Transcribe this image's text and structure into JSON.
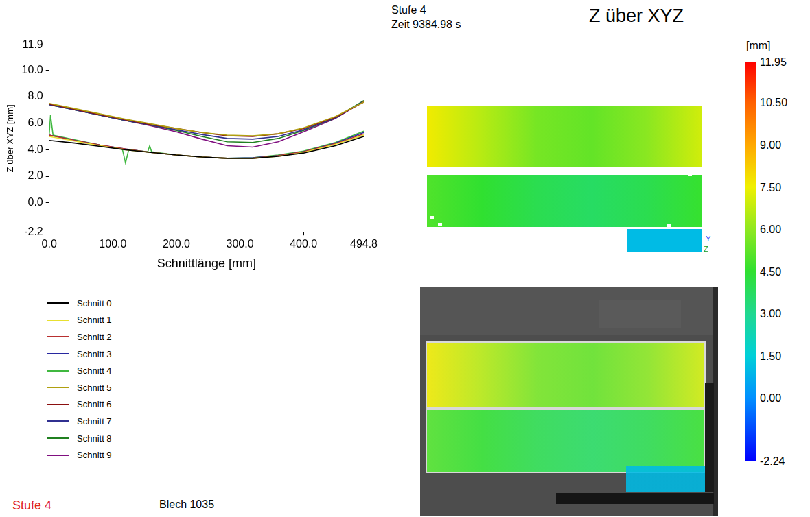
{
  "header": {
    "stage": "Stufe 4",
    "time": "Zeit 9384.98 s",
    "title": "Z über XYZ"
  },
  "chart_data": {
    "type": "line",
    "x_label": "Schnittlänge [mm]",
    "y_label": "Z über XYZ [mm]",
    "x": [
      0,
      40,
      80,
      120,
      160,
      200,
      240,
      280,
      320,
      360,
      400,
      450,
      494.8
    ],
    "series": [
      {
        "name": "Schnitt 0",
        "color": "#000000",
        "values": [
          4.7,
          4.5,
          4.25,
          4.0,
          3.8,
          3.6,
          3.45,
          3.35,
          3.35,
          3.5,
          3.75,
          4.3,
          5.0
        ]
      },
      {
        "name": "Schnitt 1",
        "color": "#e8e030",
        "values": [
          5.0,
          4.65,
          4.3,
          4.0,
          3.8,
          3.6,
          3.45,
          3.35,
          3.35,
          3.5,
          3.8,
          4.4,
          5.1
        ]
      },
      {
        "name": "Schnitt 2",
        "color": "#b83030",
        "values": [
          5.1,
          4.7,
          4.35,
          4.05,
          3.8,
          3.6,
          3.45,
          3.35,
          3.35,
          3.55,
          3.85,
          4.45,
          5.2
        ]
      },
      {
        "name": "Schnitt 3",
        "color": "#2828a0",
        "values": [
          5.1,
          4.7,
          4.35,
          4.05,
          3.8,
          3.6,
          3.45,
          3.35,
          3.4,
          3.55,
          3.85,
          4.5,
          5.3
        ]
      },
      {
        "name": "Schnitt 4",
        "color": "#40b840",
        "x": [
          0,
          2,
          6,
          40,
          80,
          115,
          120,
          125,
          155,
          158,
          161,
          200,
          240,
          280,
          320,
          360,
          400,
          450,
          494.8
        ],
        "values": [
          5.2,
          6.6,
          5.1,
          4.75,
          4.35,
          4.05,
          3.0,
          4.0,
          3.85,
          4.3,
          3.85,
          3.6,
          3.45,
          3.35,
          3.4,
          3.6,
          3.9,
          4.55,
          5.4
        ]
      },
      {
        "name": "Schnitt 5",
        "color": "#b0a010",
        "values": [
          7.5,
          7.1,
          6.7,
          6.3,
          5.95,
          5.6,
          5.3,
          5.1,
          5.05,
          5.2,
          5.65,
          6.5,
          7.6
        ]
      },
      {
        "name": "Schnitt 6",
        "color": "#8b1010",
        "values": [
          7.45,
          7.05,
          6.65,
          6.25,
          5.9,
          5.6,
          5.3,
          5.05,
          5.0,
          5.2,
          5.6,
          6.45,
          7.6
        ]
      },
      {
        "name": "Schnitt 7",
        "color": "#303090",
        "values": [
          7.4,
          7.0,
          6.6,
          6.2,
          5.85,
          5.5,
          5.15,
          4.85,
          4.8,
          5.0,
          5.5,
          6.4,
          7.65
        ]
      },
      {
        "name": "Schnitt 8",
        "color": "#208020",
        "values": [
          7.4,
          7.0,
          6.6,
          6.2,
          5.85,
          5.45,
          5.0,
          4.6,
          4.55,
          4.85,
          5.45,
          6.4,
          7.7
        ]
      },
      {
        "name": "Schnitt 9",
        "color": "#801080",
        "values": [
          7.45,
          7.0,
          6.6,
          6.2,
          5.8,
          5.35,
          4.8,
          4.3,
          4.2,
          4.6,
          5.35,
          6.35,
          7.65
        ]
      }
    ],
    "xlim": [
      0,
      494.8
    ],
    "xticks": [
      {
        "value": 0,
        "label": "0.0"
      },
      {
        "value": 100,
        "label": "100.0"
      },
      {
        "value": 200,
        "label": "200.0"
      },
      {
        "value": 300,
        "label": "300.0"
      },
      {
        "value": 400,
        "label": "400.0"
      },
      494.8
    ],
    "ylim": [
      -2.2,
      11.9
    ],
    "yticks": [
      -2.2,
      {
        "value": 0,
        "label": "0.0"
      },
      {
        "value": 2,
        "label": "2.0"
      },
      {
        "value": 4,
        "label": "4.0"
      },
      {
        "value": 6,
        "label": "6.0"
      },
      {
        "value": 8,
        "label": "8.0"
      },
      {
        "value": 10,
        "label": "10.0"
      },
      11.9
    ],
    "grid": false,
    "legend": "bottom"
  },
  "surface": {
    "panels": [
      {
        "values": [
          7.6,
          6.6,
          5.6,
          5.3,
          5.9,
          7.0
        ]
      },
      {
        "values": [
          5.0,
          4.5,
          4.0,
          3.7,
          4.0,
          4.6
        ]
      },
      {
        "values": [
          1.0
        ]
      }
    ],
    "axis_labels": [
      "Y",
      "Z"
    ]
  },
  "colorbar": {
    "unit": "[mm]",
    "range": [
      -2.24,
      11.95
    ],
    "ticks": [
      11.95,
      {
        "value": 10.5,
        "label": "10.50"
      },
      {
        "value": 9,
        "label": "9.00"
      },
      {
        "value": 7.5,
        "label": "7.50"
      },
      {
        "value": 6,
        "label": "6.00"
      },
      {
        "value": 4.5,
        "label": "4.50"
      },
      {
        "value": 3,
        "label": "3.00"
      },
      {
        "value": 1.5,
        "label": "1.50"
      },
      {
        "value": 0,
        "label": "0.00"
      },
      -2.24
    ],
    "colors": [
      "#ff0000",
      "#ff6000",
      "#ffa800",
      "#f0f000",
      "#90e820",
      "#30e030",
      "#20d890",
      "#00d0d8",
      "#0090ff",
      "#0000ff"
    ]
  },
  "footer": {
    "stage": "Stufe 4",
    "sheet": "Blech 1035"
  }
}
